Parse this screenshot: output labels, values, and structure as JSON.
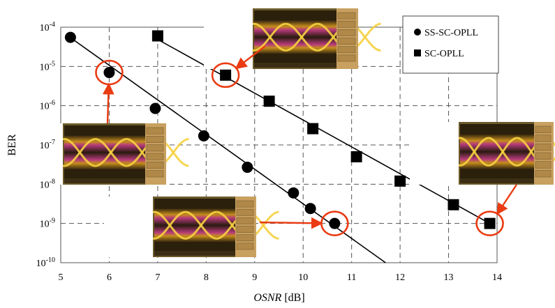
{
  "chart_data": {
    "type": "scatter",
    "xlabel_italic": "OSNR",
    "xlabel_unit": "[dB]",
    "ylabel": "BER",
    "xlim": [
      5,
      14
    ],
    "ylim_exponent": [
      -10,
      -4
    ],
    "y_scale": "log",
    "grid": true,
    "legend_placement": "top-right",
    "x_ticks": [
      "5",
      "6",
      "7",
      "8",
      "9",
      "10",
      "11",
      "12",
      "13",
      "14"
    ],
    "y_tick_base": "10",
    "y_tick_exponents": [
      "-4",
      "-5",
      "-6",
      "-7",
      "-8",
      "-9",
      "-10"
    ],
    "series": [
      {
        "name": "SS-SC-OPLL",
        "marker": "circle",
        "x": [
          5.2,
          6.0,
          6.95,
          7.95,
          8.85,
          9.8,
          10.15,
          10.65
        ],
        "y": [
          5.5e-05,
          7e-06,
          8.5e-07,
          1.7e-07,
          2.7e-08,
          6e-09,
          2.4e-09,
          1e-09
        ],
        "fit": {
          "x": [
            5.15,
            11.7
          ],
          "y": [
            6e-05,
            1e-10
          ]
        }
      },
      {
        "name": "SC-OPLL",
        "marker": "square",
        "x": [
          7.0,
          8.4,
          9.3,
          10.2,
          11.1,
          12.0,
          13.1,
          13.85
        ],
        "y": [
          6e-05,
          6e-06,
          1.3e-06,
          2.6e-07,
          5e-08,
          1.2e-08,
          3e-09,
          1e-09
        ],
        "fit": {
          "x": [
            7.05,
            13.85
          ],
          "y": [
            4.5e-05,
            1e-09
          ]
        }
      }
    ],
    "annotations": [
      {
        "type": "eye-diagram-inset",
        "highlight_x": 6.0,
        "highlight_y": 7e-06
      },
      {
        "type": "eye-diagram-inset",
        "highlight_x": 8.4,
        "highlight_y": 6e-06
      },
      {
        "type": "eye-diagram-inset",
        "highlight_x": 10.65,
        "highlight_y": 1e-09
      },
      {
        "type": "eye-diagram-inset",
        "highlight_x": 13.85,
        "highlight_y": 1e-09
      }
    ],
    "colors": {
      "highlight": "#ea3b12",
      "grid": "#555555",
      "marker": "#000000",
      "inset_bg": "#6b5a2a",
      "inset_panel": "#c8a060",
      "inset_screen": "#2a200c"
    }
  }
}
